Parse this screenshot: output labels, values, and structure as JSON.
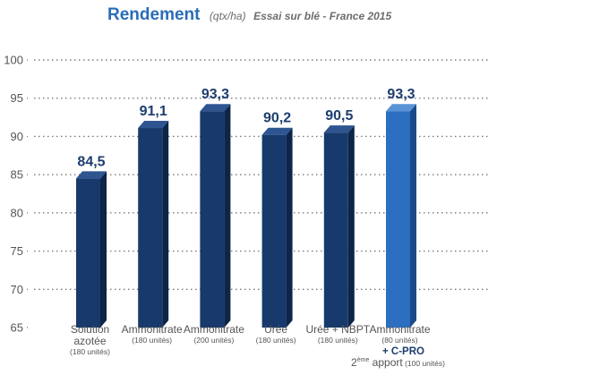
{
  "chart_data": {
    "type": "bar",
    "title": "Rendement",
    "title_unit": "(qtx/ha)",
    "subtitle": "Essai sur blé - France 2015",
    "ylim": [
      65,
      100
    ],
    "yticks": [
      65,
      70,
      75,
      80,
      85,
      90,
      95,
      100
    ],
    "grid": true,
    "categories": [
      {
        "name": "Solution azotée",
        "lines": [
          "Solution",
          "azotée"
        ],
        "sub": "(180 unités)"
      },
      {
        "name": "Ammonitrate",
        "lines": [
          "Ammonitrate"
        ],
        "sub": "(180 unités)"
      },
      {
        "name": "Ammonitrate",
        "lines": [
          "Ammonitrate"
        ],
        "sub": "(200 unités)"
      },
      {
        "name": "Urée",
        "lines": [
          "Urée"
        ],
        "sub": "(180 unités)"
      },
      {
        "name": "Urée + NBPT",
        "lines": [
          "Urée + NBPT"
        ],
        "sub": "(180 unités)"
      },
      {
        "name": "Ammonitrate",
        "lines": [
          "Ammonitrate"
        ],
        "sub": "(80 unités)",
        "extra": "+ C-PRO",
        "footer_pre": "2",
        "footer_sup": "ème",
        "footer_word": " apport",
        "footer_sub": " (100 unités)"
      }
    ],
    "values": [
      84.5,
      91.1,
      93.3,
      90.2,
      90.5,
      93.3
    ],
    "value_labels": [
      "84,5",
      "91,1",
      "93,3",
      "90,2",
      "90,5",
      "93,3"
    ],
    "colors": {
      "bar_front": "#17396b",
      "bar_side": "#0d2547",
      "bar_top": "#2e5590",
      "highlight_front": "#2c6fc0",
      "highlight_side": "#1a4a8a",
      "highlight_top": "#5a92d6",
      "title": "#2a6db5",
      "value_label": "#1c3d6e"
    },
    "highlight_index": 5
  }
}
